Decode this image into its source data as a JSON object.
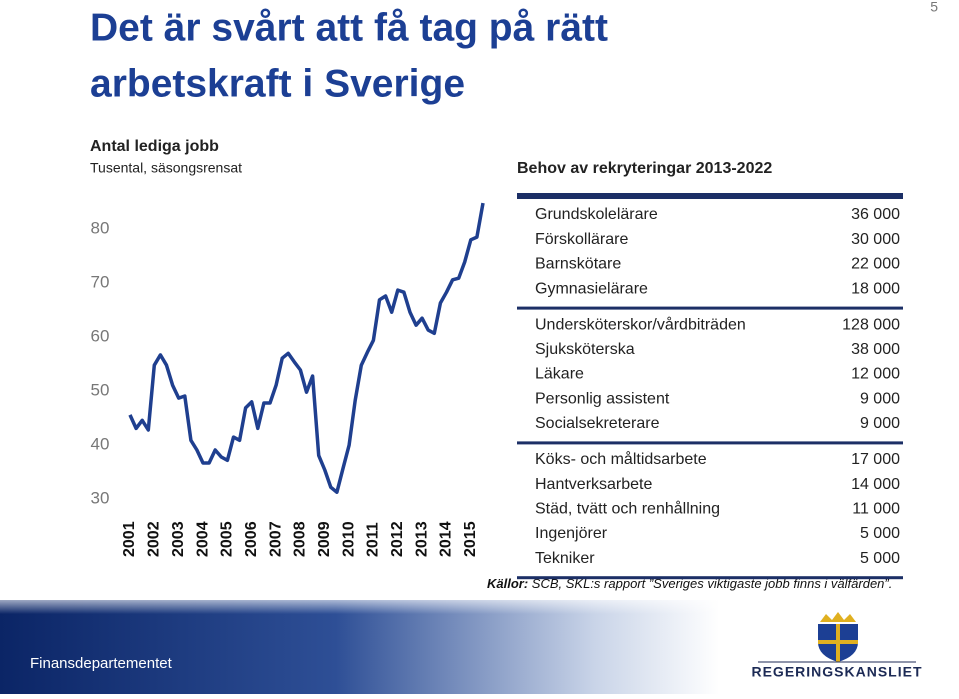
{
  "page_number": "5",
  "title_lines": [
    "Det är svårt att få tag på rätt",
    "arbetskraft i Sverige"
  ],
  "chart_data": {
    "type": "line",
    "title": "Antal lediga jobb",
    "subtitle": "Tusental, säsongsrensat",
    "x": [
      2001,
      2001.25,
      2001.5,
      2001.75,
      2002,
      2002.25,
      2002.5,
      2002.75,
      2003,
      2003.25,
      2003.5,
      2003.75,
      2004,
      2004.25,
      2004.5,
      2004.75,
      2005,
      2005.25,
      2005.5,
      2005.75,
      2006,
      2006.25,
      2006.5,
      2006.75,
      2007,
      2007.25,
      2007.5,
      2007.75,
      2008,
      2008.25,
      2008.5,
      2008.75,
      2009,
      2009.25,
      2009.5,
      2009.75,
      2010,
      2010.25,
      2010.5,
      2010.75,
      2011,
      2011.25,
      2011.5,
      2011.75,
      2012,
      2012.25,
      2012.5,
      2012.75,
      2013,
      2013.25,
      2013.5,
      2013.75,
      2014,
      2014.25,
      2014.5,
      2014.75,
      2015,
      2015.25,
      2015.5
    ],
    "series": [
      {
        "name": "Antal lediga jobb",
        "color": "#1f3f8f",
        "values": [
          45.6,
          43.1,
          44.6,
          42.8,
          54.8,
          56.7,
          54.8,
          51.1,
          48.7,
          49.1,
          40.9,
          39.1,
          36.7,
          36.7,
          39.1,
          37.8,
          37.2,
          41.5,
          40.9,
          46.9,
          48.0,
          43.1,
          47.8,
          47.8,
          51.1,
          56.1,
          57.0,
          55.4,
          53.9,
          49.8,
          52.8,
          38.1,
          35.4,
          32.2,
          31.3,
          35.7,
          40.0,
          48.3,
          54.8,
          57.2,
          59.4,
          66.9,
          67.6,
          64.6,
          68.7,
          68.3,
          64.6,
          62.2,
          63.5,
          61.3,
          60.7,
          66.3,
          68.3,
          70.6,
          70.9,
          73.9,
          78.0,
          78.5,
          84.8
        ]
      }
    ],
    "xlim": [
      2001,
      2015.5
    ],
    "xticks": [
      2001,
      2002,
      2003,
      2004,
      2005,
      2006,
      2007,
      2008,
      2009,
      2010,
      2011,
      2012,
      2013,
      2014,
      2015
    ],
    "ylim": [
      28,
      85
    ],
    "yticks": [
      30,
      40,
      50,
      60,
      70,
      80
    ],
    "grid": false
  },
  "table": {
    "title": "Behov av rekryteringar 2013-2022",
    "groups": [
      [
        {
          "name": "Grundskolelärare",
          "value": "36 000"
        },
        {
          "name": "Förskollärare",
          "value": "30 000"
        },
        {
          "name": "Barnskötare",
          "value": "22 000"
        },
        {
          "name": "Gymnasielärare",
          "value": "18 000"
        }
      ],
      [
        {
          "name": "Undersköterskor/vårdbiträden",
          "value": "128 000"
        },
        {
          "name": "Sjuksköterska",
          "value": "38 000"
        },
        {
          "name": "Läkare",
          "value": "12 000"
        },
        {
          "name": "Personlig assistent",
          "value": "9 000"
        },
        {
          "name": "Socialsekreterare",
          "value": "9 000"
        }
      ],
      [
        {
          "name": "Köks- och måltidsarbete",
          "value": "17 000"
        },
        {
          "name": "Hantverksarbete",
          "value": "14 000"
        },
        {
          "name": "Städ, tvätt och renhållning",
          "value": "11 000"
        },
        {
          "name": "Ingenjörer",
          "value": "5 000"
        },
        {
          "name": "Tekniker",
          "value": "5 000"
        }
      ]
    ]
  },
  "source": {
    "label": "Källor:",
    "text": "SCB, SKL:s rapport ”Sveriges viktigaste jobb finns i välfärden”."
  },
  "footer": {
    "department": "Finansdepartementet",
    "logo": "REGERINGSKANSLIET"
  }
}
